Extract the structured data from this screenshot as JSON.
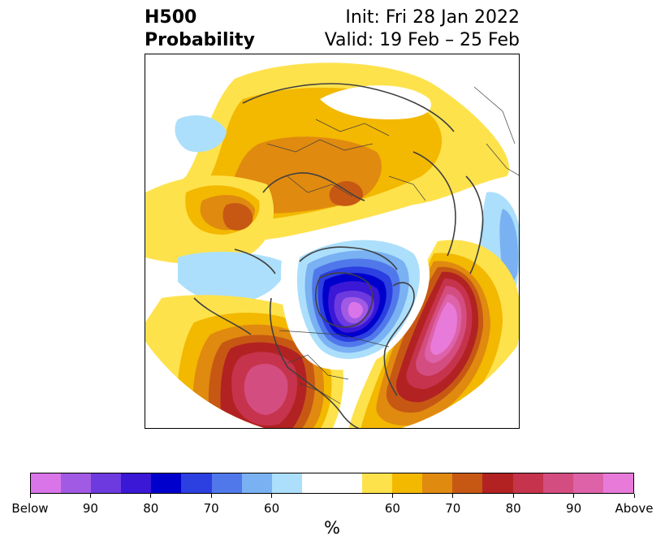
{
  "title": {
    "left_line1": "H500",
    "left_line2": "Probability",
    "right_line1": "Init: Fri 28 Jan 2022",
    "right_line2": "Valid: 19 Feb – 25 Feb"
  },
  "map": {
    "projection": "north-polar-stereographic",
    "features": [
      {
        "name": "below-normal-center-hudson-bay",
        "category": "Below",
        "level": "strong"
      },
      {
        "name": "above-normal-center-western-us",
        "category": "Above",
        "level": "strong"
      },
      {
        "name": "above-normal-center-north-atlantic",
        "category": "Above",
        "level": "strong"
      },
      {
        "name": "above-normal-siberia",
        "category": "Above",
        "level": "moderate"
      },
      {
        "name": "above-normal-eurasia",
        "category": "Above",
        "level": "moderate"
      },
      {
        "name": "below-normal-north-pacific",
        "category": "Below",
        "level": "weak"
      }
    ]
  },
  "colorbar": {
    "unit": "%",
    "colors": [
      "#d975e8",
      "#a15ae3",
      "#6d3ae0",
      "#3b17d6",
      "#0000cc",
      "#2c3fe0",
      "#5078ea",
      "#79b1f2",
      "#acdffb",
      "#ffffff",
      "#ffffff",
      "#fee24c",
      "#f3b800",
      "#e08a10",
      "#c75814",
      "#b22222",
      "#c6334c",
      "#d44d80",
      "#dd62a8",
      "#e87ad9"
    ],
    "tick_labels": [
      {
        "label": "Below",
        "index": 0
      },
      {
        "label": "90",
        "index": 2
      },
      {
        "label": "80",
        "index": 4
      },
      {
        "label": "70",
        "index": 6
      },
      {
        "label": "60",
        "index": 8
      },
      {
        "label": "60",
        "index": 12
      },
      {
        "label": "70",
        "index": 14
      },
      {
        "label": "80",
        "index": 16
      },
      {
        "label": "90",
        "index": 18
      },
      {
        "label": "Above",
        "index": 20
      }
    ]
  }
}
